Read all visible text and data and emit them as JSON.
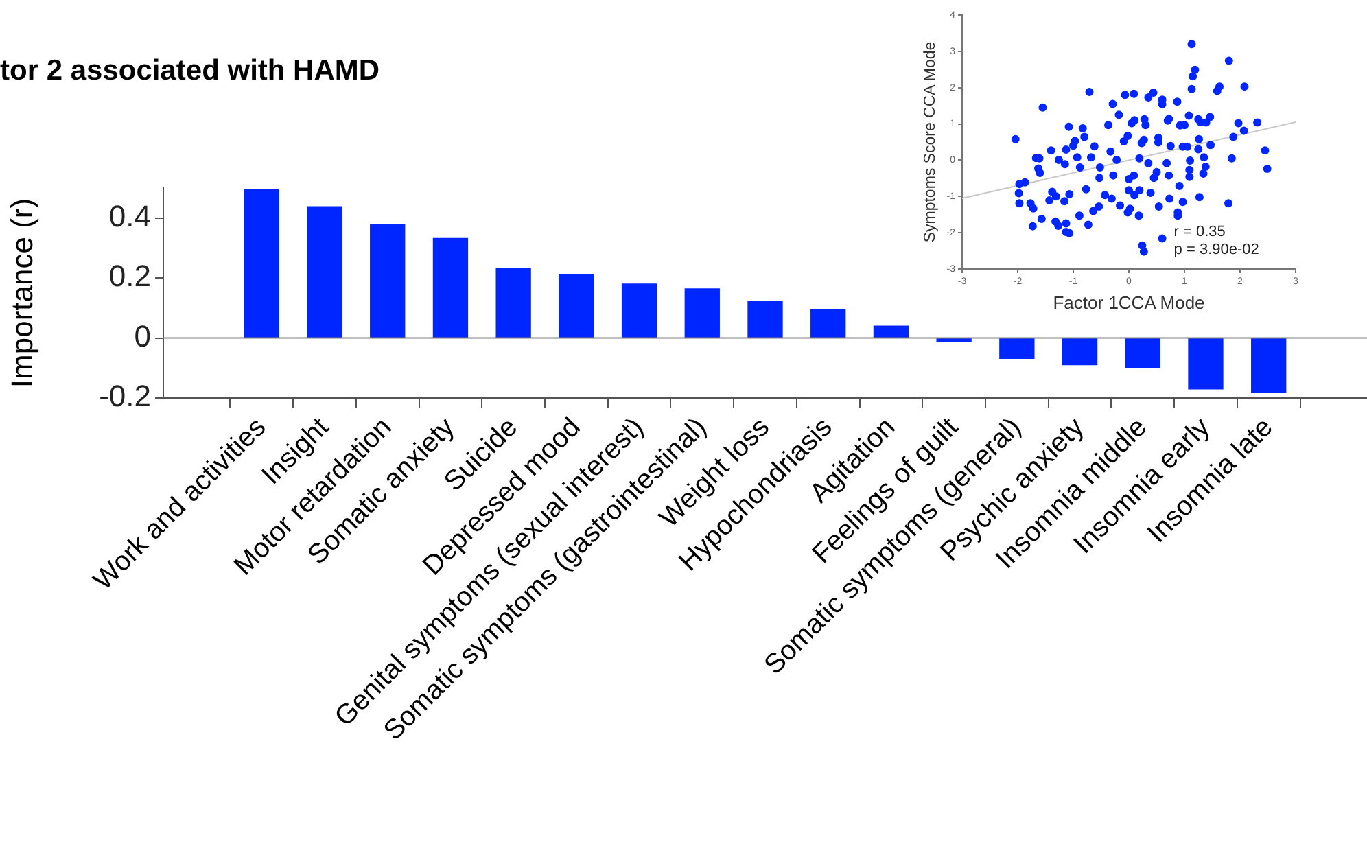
{
  "chart_data": [
    {
      "type": "bar",
      "title": "tor 2 associated with HAMD",
      "ylabel": "Importance (r)",
      "categories": [
        "Work and activities",
        "Insight",
        "Motor retardation",
        "Somatic anxiety",
        "Suicide",
        "Depressed mood",
        "Genital symptoms (sexual interest)",
        "Somatic symptoms (gastrointestinal)",
        "Weight loss",
        "Hypochondriasis",
        "Agitation",
        "Feelings of guilt",
        "Somatic symptoms (general)",
        "Psychic anxiety",
        "Insomnia middle",
        "Insomnia early",
        "Insomnia late"
      ],
      "values": [
        0.494,
        0.438,
        0.377,
        0.332,
        0.231,
        0.21,
        0.18,
        0.164,
        0.122,
        0.095,
        0.04,
        -0.012,
        -0.068,
        -0.089,
        -0.099,
        -0.17,
        -0.18
      ],
      "color": "#0026ff",
      "ylim": [
        -0.2,
        0.5
      ],
      "yticks": [
        -0.2,
        0,
        0.2,
        0.4
      ],
      "ref_lines": [
        {
          "axis": "y",
          "value": 0,
          "color": "#808080"
        }
      ]
    },
    {
      "type": "scatter",
      "xlabel": "Factor 1CCA Mode",
      "ylabel": "Symptoms Score CCA Mode",
      "xlim": [
        -3,
        3
      ],
      "xticks": [
        -3,
        -2,
        -1,
        0,
        1,
        2,
        3
      ],
      "ylim": [
        -3,
        4
      ],
      "yticks": [
        -3,
        -2,
        -1,
        0,
        1,
        2,
        3,
        4
      ],
      "annotations": [
        "r = 0.35",
        "p = 3.90e-02"
      ],
      "series": [
        {
          "type": "scatter",
          "marker": "circle",
          "color": "#0026ff",
          "x": [
            1.13,
            1.8,
            1.19,
            1.15,
            1.13,
            2.08,
            1.63,
            1.59,
            -1.55,
            -0.71,
            -0.07,
            0.09,
            0.44,
            0.35,
            0.6,
            0.6,
            0.87,
            -0.29,
            -0.18,
            1.08,
            1.25,
            1.29,
            1.0,
            0.92,
            1.46,
            1.39,
            2.31,
            1.97,
            2.07,
            1.88,
            2.45,
            2.49,
            1.85,
            0.72,
            0.7,
            0.28,
            0.3,
            0.1,
            0.05,
            -0.37,
            -1.08,
            -0.83,
            -0.8,
            -2.04,
            1.26,
            1.25,
            1.47,
            0.97,
            1.05,
            0.75,
            0.53,
            0.53,
            0.27,
            0.23,
            -0.02,
            -0.09,
            -0.33,
            -0.62,
            -0.97,
            -1.0,
            -1.13,
            -1.4,
            -1.67,
            -1.61,
            -1.26,
            -0.93,
            -0.68,
            -0.22,
            0.19,
            0.35,
            0.68,
            1.1,
            1.35,
            1.38,
            1.09,
            1.09,
            1.34,
            0.72,
            0.5,
            0.45,
            0.09,
            0.0,
            -0.28,
            -0.52,
            -0.53,
            -0.88,
            -1.15,
            -1.6,
            -1.63,
            -1.87,
            -1.97,
            -1.98,
            -1.97,
            -1.77,
            -1.72,
            -1.57,
            -1.73,
            -1.38,
            -1.31,
            -1.43,
            -1.32,
            -1.27,
            -1.13,
            -1.13,
            -1.07,
            -1.16,
            -1.07,
            -0.89,
            -0.73,
            -0.77,
            -0.64,
            -0.54,
            -0.43,
            -0.31,
            -0.16,
            -0.02,
            0.02,
            0.18,
            0.24,
            0.27,
            0.6,
            0.54,
            0.73,
            0.88,
            0.88,
            0.97,
            1.27,
            1.79,
            0.91,
            0.1,
            0.19,
            0.39,
            0.0
          ],
          "values": [
            3.2,
            2.74,
            2.49,
            2.31,
            1.96,
            2.03,
            2.03,
            1.91,
            1.45,
            1.88,
            1.8,
            1.83,
            1.86,
            1.73,
            1.67,
            1.54,
            1.61,
            1.55,
            1.25,
            1.23,
            1.13,
            1.05,
            0.97,
            0.96,
            1.19,
            1.04,
            1.04,
            1.02,
            0.81,
            0.64,
            0.27,
            -0.24,
            0.05,
            1.14,
            1.09,
            1.13,
            0.97,
            1.1,
            1.02,
            0.97,
            0.92,
            0.88,
            0.64,
            0.58,
            0.58,
            0.3,
            0.42,
            0.37,
            0.37,
            0.39,
            0.49,
            0.62,
            0.56,
            0.47,
            0.67,
            0.52,
            0.24,
            0.38,
            0.53,
            0.4,
            0.29,
            0.27,
            0.06,
            0.05,
            0.01,
            0.08,
            0.08,
            0.01,
            0.05,
            -0.08,
            -0.08,
            -0.01,
            0.08,
            -0.18,
            -0.27,
            -0.46,
            -0.37,
            -0.42,
            -0.33,
            -0.49,
            -0.42,
            -0.52,
            -0.42,
            -0.2,
            -0.49,
            -0.2,
            -0.11,
            -0.35,
            -0.23,
            -0.61,
            -0.66,
            -0.91,
            -1.19,
            -1.19,
            -1.33,
            -1.62,
            -1.82,
            -0.87,
            -1.0,
            -1.11,
            -1.69,
            -1.81,
            -1.74,
            -1.98,
            -2.01,
            -1.13,
            -0.94,
            -1.53,
            -1.78,
            -0.8,
            -1.4,
            -1.28,
            -0.96,
            -1.06,
            -1.25,
            -1.44,
            -1.34,
            -1.53,
            -2.35,
            -2.52,
            -2.16,
            -1.28,
            -1.06,
            -1.44,
            -1.53,
            -1.15,
            -1.02,
            -1.19,
            -0.71,
            -0.96,
            -0.83,
            -0.9,
            -0.83
          ]
        },
        {
          "type": "line",
          "marker": "none",
          "color": "#c8c8c8",
          "x": [
            -3,
            3
          ],
          "values": [
            -1.05,
            1.05
          ]
        }
      ]
    }
  ]
}
